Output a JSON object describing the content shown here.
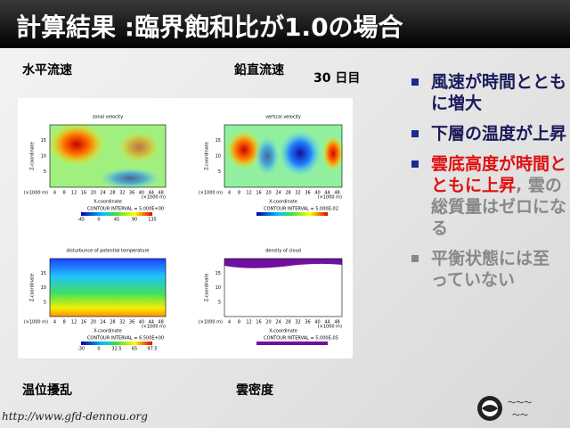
{
  "header": {
    "title": "計算結果 :臨界飽和比が1.0の場合"
  },
  "labels": {
    "zonal": "水平流速",
    "vertical": "鉛直流速",
    "day": "30 日目",
    "potential": "温位擾乱",
    "cloud": "雲密度"
  },
  "bullets": [
    {
      "text": "風速が時間とともに増大"
    },
    {
      "text": "下層の温度が上昇"
    },
    {
      "text": "雲底高度が時間とともに上昇",
      "extra": ", 雲の総質量はゼロになる"
    },
    {
      "text": "平衡状態には至っていない"
    }
  ],
  "panels": [
    {
      "title": "zonal velocity",
      "ylabel": "Z-coordinate",
      "xlabel": "X-coordinate",
      "unit": "(×1000 m)",
      "xticks": [
        "4",
        "8",
        "12",
        "16",
        "20",
        "24",
        "28",
        "32",
        "36",
        "40",
        "44",
        "48"
      ],
      "yticks": [
        "5",
        "10",
        "15"
      ],
      "contour": "CONTOUR INTERVAL = 5.000E+00",
      "colorbar": [
        "-45",
        "0",
        "45",
        "90",
        "135"
      ]
    },
    {
      "title": "vertical velocity",
      "ylabel": "Z-coordinate",
      "xlabel": "X-coordinate",
      "unit": "(×1000 m)",
      "xticks": [
        "4",
        "8",
        "12",
        "16",
        "20",
        "24",
        "28",
        "32",
        "36",
        "40",
        "44",
        "48"
      ],
      "yticks": [
        "5",
        "10",
        "15"
      ],
      "contour": "CONTOUR INTERVAL = 5.000E-02",
      "colorbar": []
    },
    {
      "title": "disturbunce of potential temperature",
      "ylabel": "Z-coordinate",
      "xlabel": "X-coordinate",
      "unit": "(×1000 m)",
      "xticks": [
        "4",
        "8",
        "12",
        "16",
        "20",
        "24",
        "28",
        "32",
        "36",
        "40",
        "44",
        "48"
      ],
      "yticks": [
        "5",
        "10",
        "15"
      ],
      "contour": "CONTOUR INTERVAL = 6.500E+00",
      "colorbar": [
        "-30",
        "0",
        "32.5",
        "65",
        "97.5"
      ]
    },
    {
      "title": "density of cloud",
      "ylabel": "Z-coordinate",
      "xlabel": "X-coordinate",
      "unit": "(×1000 m)",
      "xticks": [
        "4",
        "8",
        "12",
        "16",
        "20",
        "24",
        "28",
        "32",
        "36",
        "40",
        "44",
        "48"
      ],
      "yticks": [
        "5",
        "10",
        "15"
      ],
      "contour": "CONTOUR INTERVAL = 5.000E-05",
      "colorbar": []
    }
  ],
  "footer": {
    "url": "http://www.gfd-dennou.org"
  }
}
